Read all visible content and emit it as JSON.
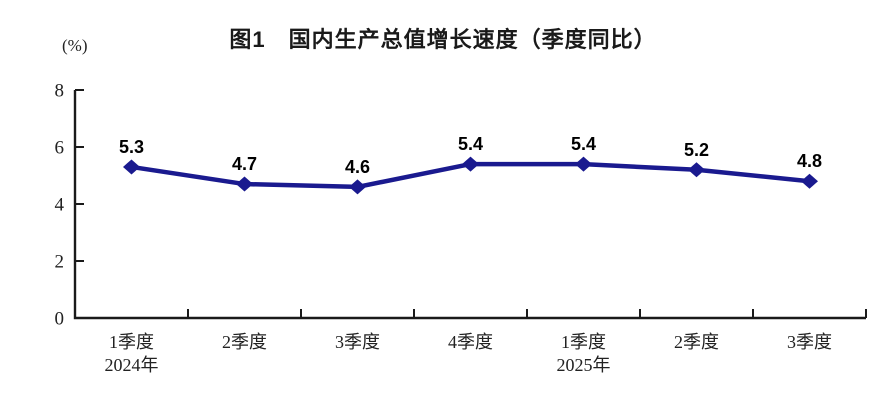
{
  "chart": {
    "title": "图1　国内生产总值增长速度（季度同比）",
    "unit_label": "(%)"
  },
  "chart_data": {
    "type": "line",
    "title": "图1　国内生产总值增长速度（季度同比）",
    "unit": "(%)",
    "categories": [
      "1季度",
      "2季度",
      "3季度",
      "4季度",
      "1季度",
      "2季度",
      "3季度"
    ],
    "category_sublabels": [
      "2024年",
      "",
      "",
      "",
      "2025年",
      "",
      ""
    ],
    "series": [
      {
        "name": "国内生产总值增长速度",
        "values": [
          5.3,
          4.7,
          4.6,
          5.4,
          5.4,
          5.2,
          4.8
        ]
      }
    ],
    "ylim": [
      0,
      8
    ],
    "yticks": [
      0,
      2,
      4,
      6,
      8
    ],
    "grid": false,
    "legend": "none",
    "line_color": "#1a1a8f",
    "marker_shape": "diamond",
    "label_color": "#000000",
    "axis_color": "#1a1a1a"
  }
}
